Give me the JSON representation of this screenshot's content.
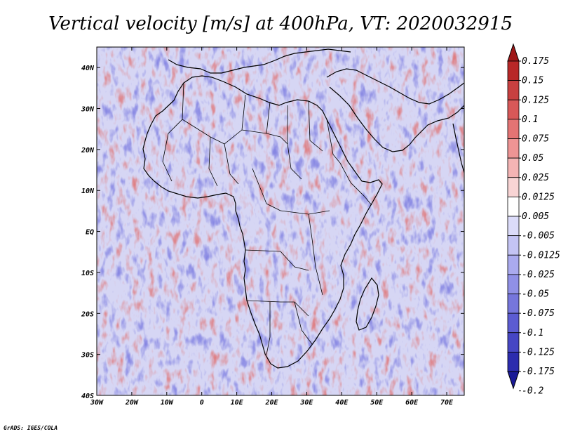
{
  "title": "Vertical velocity [m/s] at 400hPa, VT: 2020032915",
  "credit": "GrADS: IGES/COLA",
  "map": {
    "lon_range": [
      -30,
      75
    ],
    "lat_range": [
      -40,
      45
    ],
    "lon_ticks": [
      {
        "value": -30,
        "label": "30W"
      },
      {
        "value": -20,
        "label": "20W"
      },
      {
        "value": -10,
        "label": "10W"
      },
      {
        "value": 0,
        "label": "0"
      },
      {
        "value": 10,
        "label": "10E"
      },
      {
        "value": 20,
        "label": "20E"
      },
      {
        "value": 30,
        "label": "30E"
      },
      {
        "value": 40,
        "label": "40E"
      },
      {
        "value": 50,
        "label": "50E"
      },
      {
        "value": 60,
        "label": "60E"
      },
      {
        "value": 70,
        "label": "70E"
      }
    ],
    "lat_ticks": [
      {
        "value": 40,
        "label": "40N"
      },
      {
        "value": 30,
        "label": "30N"
      },
      {
        "value": 20,
        "label": "20N"
      },
      {
        "value": 10,
        "label": "10N"
      },
      {
        "value": 0,
        "label": "EQ"
      },
      {
        "value": -10,
        "label": "10S"
      },
      {
        "value": -20,
        "label": "20S"
      },
      {
        "value": -30,
        "label": "30S"
      },
      {
        "value": -40,
        "label": "40S"
      }
    ]
  },
  "colorbar": {
    "levels": [
      "0.175",
      "0.15",
      "0.125",
      "0.1",
      "0.075",
      "0.05",
      "0.025",
      "0.0125",
      "0.005",
      "-0.005",
      "-0.0125",
      "-0.025",
      "-0.05",
      "-0.075",
      "-0.1",
      "-0.125",
      "-0.175",
      "-0.2"
    ],
    "colors": [
      "#a01818",
      "#b82828",
      "#c84040",
      "#d85858",
      "#e47474",
      "#ee9494",
      "#f4b4b4",
      "#f8d4d4",
      "#ffffff",
      "#dcdcfa",
      "#c4c4f4",
      "#aaaaee",
      "#9090e6",
      "#7676dc",
      "#5c5cd2",
      "#4646c4",
      "#2c2cae",
      "#1a1a96"
    ]
  }
}
